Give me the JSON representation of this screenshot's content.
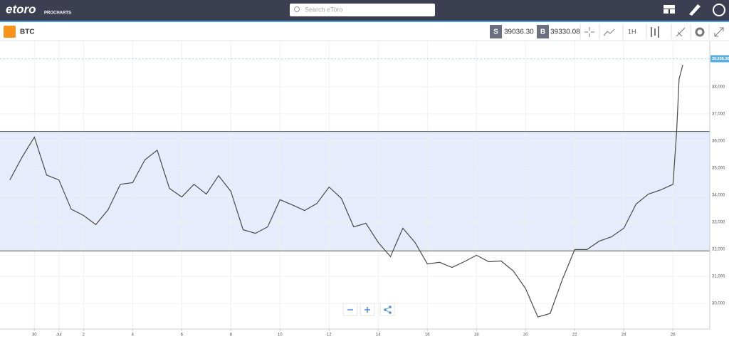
{
  "header": {
    "logo": "etoro",
    "product": "PROCHARTS",
    "search_placeholder": "Search eToro"
  },
  "toolbar": {
    "symbol": "BTC",
    "sell_label": "S",
    "sell_price": "39036.30",
    "buy_label": "B",
    "buy_price": "39330.08",
    "interval": "1H"
  },
  "chart_data": {
    "type": "line",
    "x": [
      -1,
      -0.5,
      0,
      0.5,
      1,
      1.5,
      2,
      2.5,
      3,
      3.5,
      4,
      4.5,
      5,
      5.5,
      6,
      6.5,
      7,
      7.5,
      8,
      8.5,
      9,
      9.5,
      10,
      10.5,
      11,
      11.5,
      12,
      12.5,
      13,
      13.5,
      14,
      14.5,
      15,
      15.5,
      16,
      16.5,
      17,
      17.5,
      18,
      18.5,
      19,
      19.5,
      20,
      20.5,
      21,
      21.5,
      22,
      22.5,
      23,
      23.5,
      24,
      24.5,
      25,
      25.5,
      26,
      26.15,
      26.25,
      26.4
    ],
    "series": [
      {
        "name": "BTC",
        "color": "#4a4a4a",
        "values": [
          34560,
          35400,
          36140,
          34740,
          34560,
          33480,
          33250,
          32910,
          33460,
          34400,
          34460,
          35300,
          35660,
          34250,
          33930,
          34400,
          34040,
          34720,
          34140,
          32720,
          32590,
          32830,
          33830,
          33640,
          33430,
          33690,
          34300,
          33880,
          32830,
          32960,
          32250,
          31730,
          32780,
          32250,
          31460,
          31520,
          31330,
          31540,
          31780,
          31540,
          31570,
          31200,
          30550,
          29500,
          29630,
          30890,
          31990,
          31990,
          32300,
          32460,
          32780,
          33670,
          34040,
          34190,
          34400,
          36320,
          38290,
          38810
        ]
      }
    ],
    "xlim": [
      -1.4,
      27.5
    ],
    "xticks": [
      {
        "value": 0,
        "label": "30"
      },
      {
        "value": 1,
        "label": "Jul"
      },
      {
        "value": 2,
        "label": "2"
      },
      {
        "value": 4,
        "label": "4"
      },
      {
        "value": 6,
        "label": "6"
      },
      {
        "value": 8,
        "label": "8"
      },
      {
        "value": 10,
        "label": "10"
      },
      {
        "value": 12,
        "label": "12"
      },
      {
        "value": 14,
        "label": "14"
      },
      {
        "value": 16,
        "label": "16"
      },
      {
        "value": 18,
        "label": "18"
      },
      {
        "value": 20,
        "label": "20"
      },
      {
        "value": 22,
        "label": "22"
      },
      {
        "value": 24,
        "label": "24"
      },
      {
        "value": 26,
        "label": "26"
      }
    ],
    "ylim": [
      29055,
      39680
    ],
    "yticks": [
      {
        "value": 30000,
        "label": "30,000"
      },
      {
        "value": 31000,
        "label": "31,000"
      },
      {
        "value": 32000,
        "label": "32,000"
      },
      {
        "value": 33000,
        "label": "33,000"
      },
      {
        "value": 34000,
        "label": "34,000"
      },
      {
        "value": 35000,
        "label": "35,000"
      },
      {
        "value": 36000,
        "label": "36,000"
      },
      {
        "value": 37000,
        "label": "37,000"
      },
      {
        "value": 38000,
        "label": "38,000"
      }
    ],
    "band": [
      31940,
      36350
    ],
    "band_color": "#e6ecfb",
    "last_price": {
      "value": 39036.3,
      "label": "39,036.30"
    },
    "last_price_color": "#5aaede",
    "grid": true
  }
}
